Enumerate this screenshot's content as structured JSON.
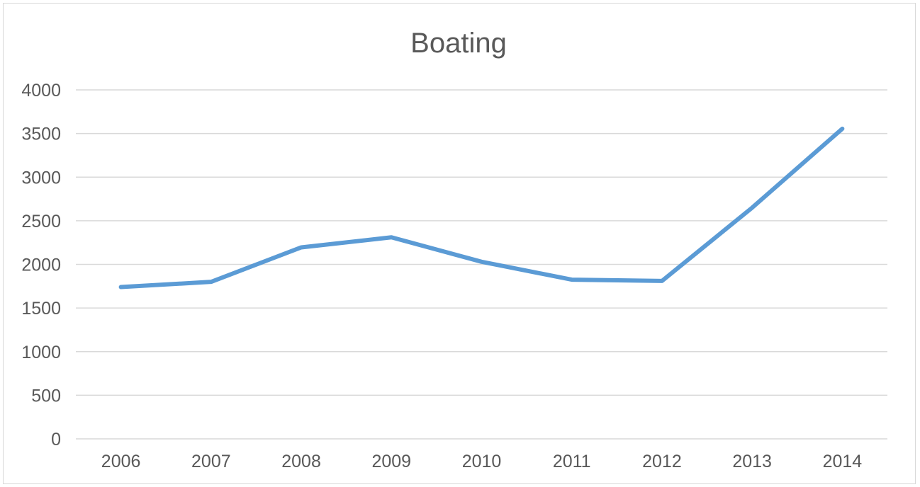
{
  "chart_data": {
    "type": "line",
    "title": "Boating",
    "xlabel": "",
    "ylabel": "",
    "categories": [
      "2006",
      "2007",
      "2008",
      "2009",
      "2010",
      "2011",
      "2012",
      "2013",
      "2014"
    ],
    "series": [
      {
        "values": [
          1740,
          1800,
          2195,
          2310,
          2030,
          1825,
          1810,
          2650,
          3555
        ],
        "color": "#5b9bd5"
      }
    ],
    "ylim": [
      0,
      4000
    ],
    "y_ticks": [
      "0",
      "500",
      "1000",
      "1500",
      "2000",
      "2500",
      "3000",
      "3500",
      "4000"
    ],
    "grid": true,
    "legend": "none"
  }
}
